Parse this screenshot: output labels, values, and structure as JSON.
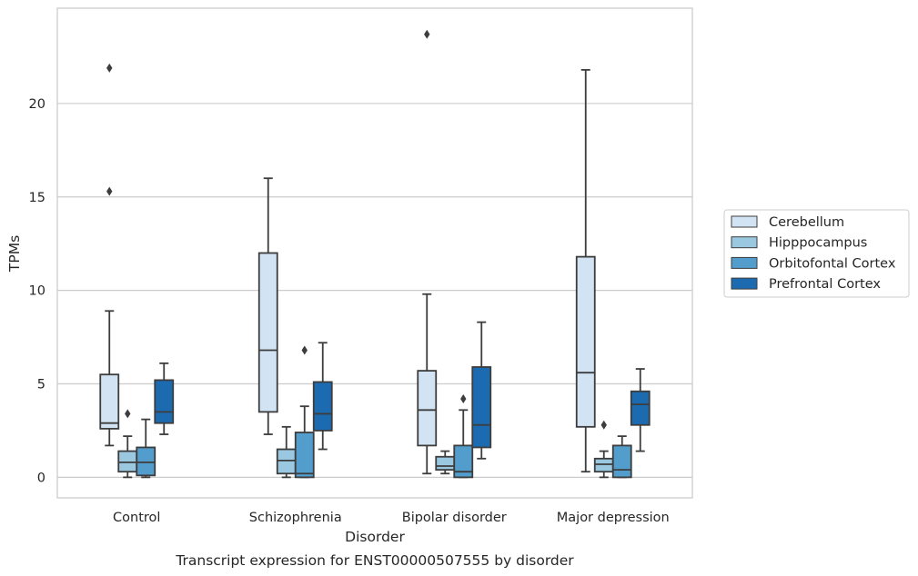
{
  "chart_data": {
    "type": "box",
    "xlabel": "Disorder",
    "ylabel": "TPMs",
    "caption": "Transcript expression for ENST00000507555 by disorder",
    "categories": [
      "Control",
      "Schizophrenia",
      "Bipolar disorder",
      "Major depression"
    ],
    "yticks": [
      0,
      5,
      10,
      15,
      20
    ],
    "ylim": [
      -1.1,
      25.1
    ],
    "grid": "horizontal",
    "legend_position": "right",
    "series": [
      {
        "name": "Cerebellum",
        "color": "#d2e3f3",
        "boxes": [
          {
            "whisker_low": 1.7,
            "q1": 2.6,
            "median": 2.9,
            "q3": 5.5,
            "whisker_high": 8.9,
            "outliers": [
              15.3,
              21.9
            ]
          },
          {
            "whisker_low": 2.3,
            "q1": 3.5,
            "median": 6.8,
            "q3": 12.0,
            "whisker_high": 16.0,
            "outliers": []
          },
          {
            "whisker_low": 0.2,
            "q1": 1.7,
            "median": 3.6,
            "q3": 5.7,
            "whisker_high": 9.8,
            "outliers": [
              23.7
            ]
          },
          {
            "whisker_low": 0.3,
            "q1": 2.7,
            "median": 5.6,
            "q3": 11.8,
            "whisker_high": 21.8,
            "outliers": []
          }
        ]
      },
      {
        "name": "Hipppocampus",
        "color": "#9ac8e0",
        "boxes": [
          {
            "whisker_low": 0.0,
            "q1": 0.3,
            "median": 0.8,
            "q3": 1.4,
            "whisker_high": 2.2,
            "outliers": [
              3.4
            ]
          },
          {
            "whisker_low": 0.0,
            "q1": 0.2,
            "median": 0.9,
            "q3": 1.5,
            "whisker_high": 2.7,
            "outliers": []
          },
          {
            "whisker_low": 0.2,
            "q1": 0.4,
            "median": 0.6,
            "q3": 1.1,
            "whisker_high": 1.4,
            "outliers": []
          },
          {
            "whisker_low": 0.0,
            "q1": 0.3,
            "median": 0.7,
            "q3": 1.0,
            "whisker_high": 1.4,
            "outliers": [
              2.8
            ]
          }
        ]
      },
      {
        "name": "Orbitofontal Cortex",
        "color": "#529dcc",
        "boxes": [
          {
            "whisker_low": 0.0,
            "q1": 0.1,
            "median": 0.8,
            "q3": 1.6,
            "whisker_high": 3.1,
            "outliers": []
          },
          {
            "whisker_low": 0.0,
            "q1": 0.0,
            "median": 0.2,
            "q3": 2.4,
            "whisker_high": 3.8,
            "outliers": [
              6.8
            ]
          },
          {
            "whisker_low": 0.0,
            "q1": 0.0,
            "median": 0.3,
            "q3": 1.7,
            "whisker_high": 3.6,
            "outliers": [
              4.2
            ]
          },
          {
            "whisker_low": 0.0,
            "q1": 0.0,
            "median": 0.4,
            "q3": 1.7,
            "whisker_high": 2.2,
            "outliers": []
          }
        ]
      },
      {
        "name": "Prefrontal Cortex",
        "color": "#1c6aaf",
        "boxes": [
          {
            "whisker_low": 2.3,
            "q1": 2.9,
            "median": 3.5,
            "q3": 5.2,
            "whisker_high": 6.1,
            "outliers": []
          },
          {
            "whisker_low": 1.5,
            "q1": 2.5,
            "median": 3.4,
            "q3": 5.1,
            "whisker_high": 7.2,
            "outliers": []
          },
          {
            "whisker_low": 1.0,
            "q1": 1.6,
            "median": 2.8,
            "q3": 5.9,
            "whisker_high": 8.3,
            "outliers": []
          },
          {
            "whisker_low": 1.4,
            "q1": 2.8,
            "median": 3.9,
            "q3": 4.6,
            "whisker_high": 5.8,
            "outliers": []
          }
        ]
      }
    ]
  }
}
